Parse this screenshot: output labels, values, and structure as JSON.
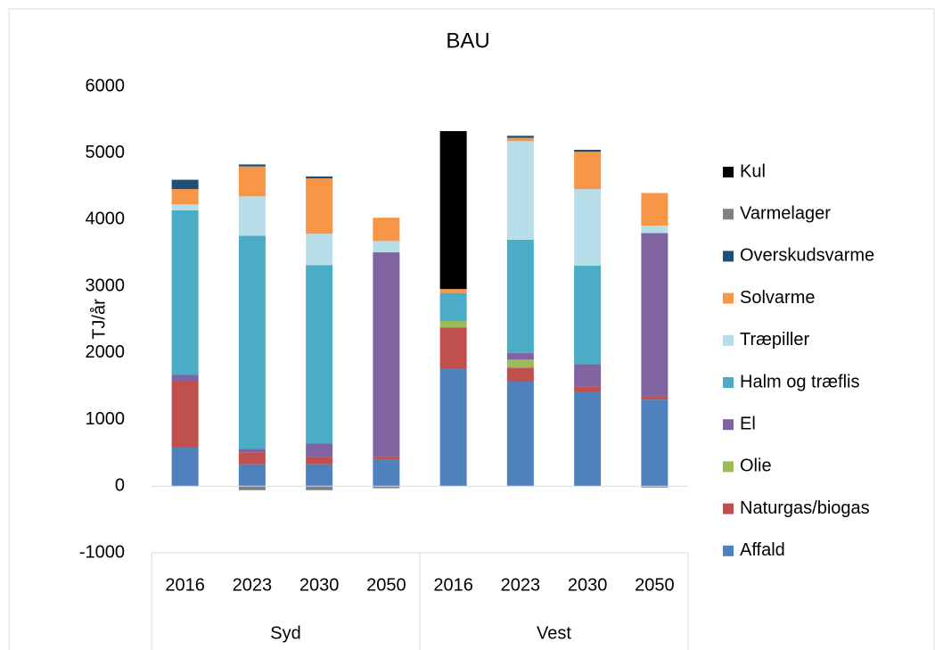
{
  "chart_data": {
    "type": "stacked_bar",
    "title": "BAU",
    "y_label": "TJ/år",
    "categories": [
      "2016",
      "2023",
      "2030",
      "2050",
      "2016",
      "2023",
      "2030",
      "2050"
    ],
    "groups": [
      "Syd",
      "Vest"
    ],
    "ylim": [
      -1000,
      6000
    ],
    "yticks": [
      -1000,
      0,
      1000,
      2000,
      3000,
      4000,
      5000,
      6000
    ],
    "grid": false,
    "legend": "right",
    "series": [
      {
        "name": "Affald",
        "color": "#4f81bd",
        "values": [
          580,
          330,
          330,
          400,
          1770,
          1570,
          1410,
          1300
        ]
      },
      {
        "name": "Naturgas/biogas",
        "color": "#c0504d",
        "values": [
          990,
          180,
          110,
          40,
          610,
          210,
          90,
          50
        ]
      },
      {
        "name": "Olie",
        "color": "#9bbb59",
        "values": [
          0,
          0,
          0,
          0,
          100,
          120,
          0,
          0
        ]
      },
      {
        "name": "El",
        "color": "#8064a2",
        "values": [
          100,
          50,
          200,
          3070,
          0,
          100,
          330,
          2450
        ]
      },
      {
        "name": "Halm og træflis",
        "color": "#4bacc6",
        "values": [
          2470,
          3200,
          2680,
          0,
          420,
          1700,
          1480,
          0
        ]
      },
      {
        "name": "Træpiller",
        "color": "#b7dee8",
        "values": [
          90,
          590,
          470,
          170,
          0,
          1480,
          1150,
          110
        ]
      },
      {
        "name": "Solvarme",
        "color": "#f79646",
        "values": [
          230,
          450,
          830,
          350,
          60,
          50,
          560,
          490
        ]
      },
      {
        "name": "Overskudsvarme",
        "color": "#1f4e79",
        "values": [
          140,
          30,
          30,
          0,
          0,
          30,
          30,
          0
        ]
      },
      {
        "name": "Varmelager",
        "color": "#808080",
        "values": [
          0,
          -60,
          -60,
          -30,
          0,
          0,
          0,
          -20
        ]
      },
      {
        "name": "Kul",
        "color": "#000000",
        "values": [
          0,
          0,
          0,
          0,
          2370,
          0,
          0,
          0
        ]
      }
    ]
  }
}
